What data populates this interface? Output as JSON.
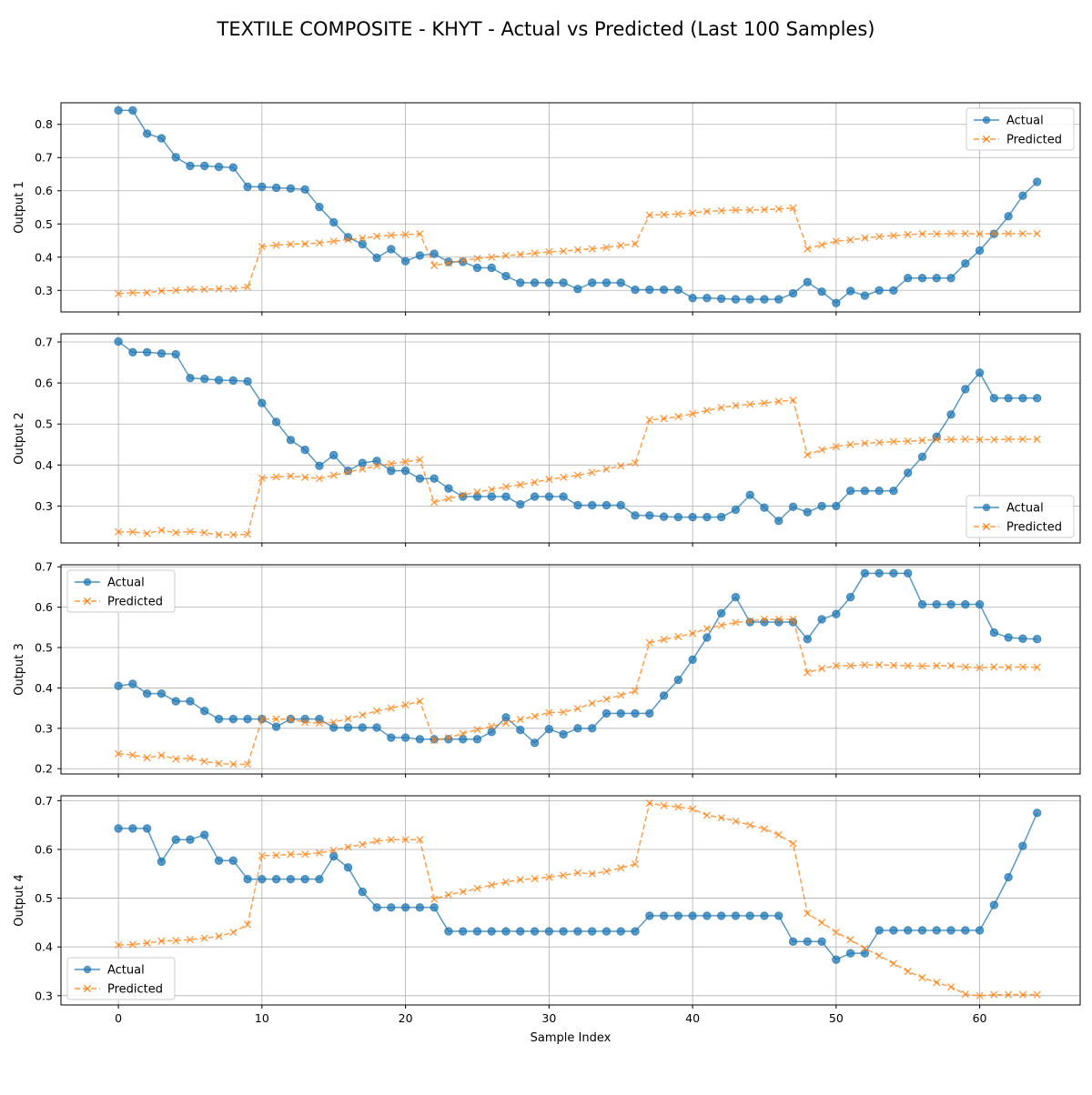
{
  "figure": {
    "title": "TEXTILE COMPOSITE - KHYT - Actual vs Predicted (Last 100 Samples)",
    "xlabel": "Sample Index"
  },
  "colors": {
    "actual": "#1f77b4",
    "predicted": "#ff7f0e",
    "grid": "#b0b0b0"
  },
  "chart_data": [
    {
      "type": "line",
      "ylabel": "Output 1",
      "legend": "upper-right",
      "xlim": [
        -4,
        67
      ],
      "ylim": [
        0.235,
        0.865
      ],
      "xticks": [
        0,
        10,
        20,
        30,
        40,
        50,
        60
      ],
      "yticks": [
        0.3,
        0.4,
        0.5,
        0.6,
        0.7,
        0.8
      ],
      "x": [
        0,
        1,
        2,
        3,
        4,
        5,
        6,
        7,
        8,
        9,
        10,
        11,
        12,
        13,
        14,
        15,
        16,
        17,
        18,
        19,
        20,
        21,
        22,
        23,
        24,
        25,
        26,
        27,
        28,
        29,
        30,
        31,
        32,
        33,
        34,
        35,
        36,
        37,
        38,
        39,
        40,
        41,
        42,
        43,
        44,
        45,
        46,
        47,
        48,
        49,
        50,
        51,
        52,
        53,
        54,
        55,
        56,
        57,
        58,
        59,
        60,
        61,
        62,
        63,
        64
      ],
      "series": [
        {
          "name": "Actual",
          "style": "solid-circle",
          "values": [
            0.842,
            0.842,
            0.772,
            0.758,
            0.701,
            0.675,
            0.675,
            0.672,
            0.67,
            0.612,
            0.612,
            0.609,
            0.607,
            0.604,
            0.551,
            0.505,
            0.46,
            0.439,
            0.398,
            0.424,
            0.388,
            0.405,
            0.41,
            0.386,
            0.386,
            0.368,
            0.368,
            0.343,
            0.323,
            0.323,
            0.323,
            0.323,
            0.304,
            0.323,
            0.323,
            0.323,
            0.302,
            0.302,
            0.302,
            0.302,
            0.277,
            0.277,
            0.275,
            0.273,
            0.273,
            0.273,
            0.273,
            0.291,
            0.325,
            0.296,
            0.262,
            0.298,
            0.284,
            0.3,
            0.3,
            0.337,
            0.337,
            0.337,
            0.337,
            0.381,
            0.42,
            0.47,
            0.523,
            0.585,
            0.627
          ]
        },
        {
          "name": "Predicted",
          "style": "dashed-x",
          "values": [
            0.29,
            0.293,
            0.293,
            0.298,
            0.3,
            0.303,
            0.303,
            0.305,
            0.305,
            0.31,
            0.432,
            0.436,
            0.439,
            0.44,
            0.443,
            0.448,
            0.453,
            0.457,
            0.463,
            0.466,
            0.468,
            0.47,
            0.375,
            0.382,
            0.39,
            0.396,
            0.4,
            0.405,
            0.408,
            0.412,
            0.416,
            0.418,
            0.422,
            0.425,
            0.429,
            0.435,
            0.44,
            0.527,
            0.528,
            0.53,
            0.533,
            0.538,
            0.54,
            0.542,
            0.542,
            0.543,
            0.545,
            0.548,
            0.425,
            0.437,
            0.448,
            0.452,
            0.458,
            0.462,
            0.465,
            0.468,
            0.47,
            0.47,
            0.471,
            0.471,
            0.47,
            0.471,
            0.471,
            0.471,
            0.471
          ]
        }
      ]
    },
    {
      "type": "line",
      "ylabel": "Output 2",
      "legend": "lower-right",
      "xlim": [
        -4,
        67
      ],
      "ylim": [
        0.21,
        0.72
      ],
      "xticks": [
        0,
        10,
        20,
        30,
        40,
        50,
        60
      ],
      "yticks": [
        0.3,
        0.4,
        0.5,
        0.6,
        0.7
      ],
      "x": [
        0,
        1,
        2,
        3,
        4,
        5,
        6,
        7,
        8,
        9,
        10,
        11,
        12,
        13,
        14,
        15,
        16,
        17,
        18,
        19,
        20,
        21,
        22,
        23,
        24,
        25,
        26,
        27,
        28,
        29,
        30,
        31,
        32,
        33,
        34,
        35,
        36,
        37,
        38,
        39,
        40,
        41,
        42,
        43,
        44,
        45,
        46,
        47,
        48,
        49,
        50,
        51,
        52,
        53,
        54,
        55,
        56,
        57,
        58,
        59,
        60,
        61,
        62,
        63,
        64
      ],
      "series": [
        {
          "name": "Actual",
          "style": "solid-circle",
          "values": [
            0.701,
            0.675,
            0.675,
            0.672,
            0.67,
            0.612,
            0.61,
            0.607,
            0.606,
            0.604,
            0.551,
            0.505,
            0.461,
            0.437,
            0.398,
            0.424,
            0.386,
            0.405,
            0.41,
            0.386,
            0.386,
            0.367,
            0.367,
            0.343,
            0.323,
            0.323,
            0.323,
            0.323,
            0.304,
            0.323,
            0.323,
            0.323,
            0.302,
            0.302,
            0.302,
            0.302,
            0.277,
            0.277,
            0.274,
            0.273,
            0.273,
            0.273,
            0.273,
            0.291,
            0.327,
            0.296,
            0.264,
            0.298,
            0.285,
            0.3,
            0.3,
            0.337,
            0.337,
            0.337,
            0.337,
            0.381,
            0.42,
            0.469,
            0.523,
            0.585,
            0.625,
            0.563,
            0.563,
            0.563,
            0.563
          ]
        },
        {
          "name": "Predicted",
          "style": "dashed-x",
          "values": [
            0.237,
            0.237,
            0.233,
            0.241,
            0.235,
            0.238,
            0.235,
            0.23,
            0.23,
            0.231,
            0.368,
            0.371,
            0.373,
            0.37,
            0.367,
            0.375,
            0.383,
            0.39,
            0.398,
            0.403,
            0.408,
            0.413,
            0.309,
            0.318,
            0.327,
            0.334,
            0.34,
            0.347,
            0.352,
            0.358,
            0.365,
            0.37,
            0.375,
            0.382,
            0.39,
            0.398,
            0.405,
            0.51,
            0.513,
            0.518,
            0.525,
            0.533,
            0.54,
            0.545,
            0.548,
            0.551,
            0.555,
            0.558,
            0.425,
            0.437,
            0.445,
            0.45,
            0.453,
            0.455,
            0.457,
            0.458,
            0.46,
            0.462,
            0.462,
            0.463,
            0.462,
            0.462,
            0.463,
            0.463,
            0.463
          ]
        }
      ]
    },
    {
      "type": "line",
      "ylabel": "Output 3",
      "legend": "upper-left",
      "xlim": [
        -4,
        67
      ],
      "ylim": [
        0.187,
        0.705
      ],
      "xticks": [
        0,
        10,
        20,
        30,
        40,
        50,
        60
      ],
      "yticks": [
        0.2,
        0.3,
        0.4,
        0.5,
        0.6,
        0.7
      ],
      "x": [
        0,
        1,
        2,
        3,
        4,
        5,
        6,
        7,
        8,
        9,
        10,
        11,
        12,
        13,
        14,
        15,
        16,
        17,
        18,
        19,
        20,
        21,
        22,
        23,
        24,
        25,
        26,
        27,
        28,
        29,
        30,
        31,
        32,
        33,
        34,
        35,
        36,
        37,
        38,
        39,
        40,
        41,
        42,
        43,
        44,
        45,
        46,
        47,
        48,
        49,
        50,
        51,
        52,
        53,
        54,
        55,
        56,
        57,
        58,
        59,
        60,
        61,
        62,
        63,
        64
      ],
      "series": [
        {
          "name": "Actual",
          "style": "solid-circle",
          "values": [
            0.405,
            0.41,
            0.386,
            0.386,
            0.367,
            0.367,
            0.343,
            0.323,
            0.323,
            0.323,
            0.323,
            0.304,
            0.323,
            0.323,
            0.323,
            0.302,
            0.302,
            0.302,
            0.302,
            0.277,
            0.277,
            0.273,
            0.273,
            0.273,
            0.273,
            0.273,
            0.291,
            0.327,
            0.296,
            0.264,
            0.298,
            0.285,
            0.3,
            0.3,
            0.337,
            0.337,
            0.337,
            0.337,
            0.381,
            0.42,
            0.47,
            0.525,
            0.585,
            0.625,
            0.563,
            0.563,
            0.563,
            0.563,
            0.521,
            0.57,
            0.583,
            0.625,
            0.684,
            0.684,
            0.684,
            0.684,
            0.607,
            0.607,
            0.607,
            0.607,
            0.607,
            0.537,
            0.525,
            0.522,
            0.521
          ]
        },
        {
          "name": "Predicted",
          "style": "dashed-x",
          "values": [
            0.237,
            0.234,
            0.227,
            0.233,
            0.224,
            0.226,
            0.218,
            0.213,
            0.211,
            0.211,
            0.323,
            0.323,
            0.322,
            0.315,
            0.313,
            0.315,
            0.324,
            0.333,
            0.343,
            0.35,
            0.358,
            0.367,
            0.27,
            0.277,
            0.287,
            0.297,
            0.305,
            0.313,
            0.322,
            0.33,
            0.339,
            0.34,
            0.349,
            0.362,
            0.372,
            0.382,
            0.392,
            0.512,
            0.52,
            0.527,
            0.535,
            0.547,
            0.555,
            0.562,
            0.566,
            0.57,
            0.57,
            0.57,
            0.438,
            0.448,
            0.455,
            0.455,
            0.457,
            0.457,
            0.456,
            0.455,
            0.454,
            0.455,
            0.455,
            0.452,
            0.45,
            0.452,
            0.451,
            0.452,
            0.451
          ]
        }
      ]
    },
    {
      "type": "line",
      "ylabel": "Output 4",
      "legend": "lower-left",
      "xlim": [
        -4,
        67
      ],
      "ylim": [
        0.281,
        0.71
      ],
      "xticks": [
        0,
        10,
        20,
        30,
        40,
        50,
        60
      ],
      "yticks": [
        0.3,
        0.4,
        0.5,
        0.6,
        0.7
      ],
      "x": [
        0,
        1,
        2,
        3,
        4,
        5,
        6,
        7,
        8,
        9,
        10,
        11,
        12,
        13,
        14,
        15,
        16,
        17,
        18,
        19,
        20,
        21,
        22,
        23,
        24,
        25,
        26,
        27,
        28,
        29,
        30,
        31,
        32,
        33,
        34,
        35,
        36,
        37,
        38,
        39,
        40,
        41,
        42,
        43,
        44,
        45,
        46,
        47,
        48,
        49,
        50,
        51,
        52,
        53,
        54,
        55,
        56,
        57,
        58,
        59,
        60,
        61,
        62,
        63,
        64
      ],
      "series": [
        {
          "name": "Actual",
          "style": "solid-circle",
          "values": [
            0.643,
            0.643,
            0.643,
            0.575,
            0.62,
            0.62,
            0.63,
            0.577,
            0.577,
            0.539,
            0.539,
            0.539,
            0.539,
            0.539,
            0.539,
            0.586,
            0.563,
            0.513,
            0.481,
            0.481,
            0.481,
            0.481,
            0.481,
            0.432,
            0.432,
            0.432,
            0.432,
            0.432,
            0.432,
            0.432,
            0.432,
            0.432,
            0.432,
            0.432,
            0.432,
            0.432,
            0.432,
            0.464,
            0.464,
            0.464,
            0.464,
            0.464,
            0.464,
            0.464,
            0.464,
            0.464,
            0.464,
            0.411,
            0.411,
            0.411,
            0.374,
            0.387,
            0.387,
            0.434,
            0.434,
            0.434,
            0.434,
            0.434,
            0.434,
            0.434,
            0.434,
            0.486,
            0.543,
            0.607,
            0.675
          ]
        },
        {
          "name": "Predicted",
          "style": "dashed-x",
          "values": [
            0.404,
            0.405,
            0.408,
            0.412,
            0.413,
            0.415,
            0.418,
            0.422,
            0.43,
            0.446,
            0.587,
            0.588,
            0.59,
            0.59,
            0.593,
            0.598,
            0.605,
            0.61,
            0.617,
            0.62,
            0.62,
            0.62,
            0.498,
            0.507,
            0.513,
            0.52,
            0.527,
            0.533,
            0.538,
            0.54,
            0.543,
            0.547,
            0.552,
            0.55,
            0.555,
            0.562,
            0.57,
            0.695,
            0.69,
            0.687,
            0.683,
            0.67,
            0.665,
            0.658,
            0.65,
            0.642,
            0.63,
            0.612,
            0.469,
            0.45,
            0.43,
            0.415,
            0.397,
            0.382,
            0.366,
            0.35,
            0.337,
            0.327,
            0.318,
            0.303,
            0.3,
            0.302,
            0.302,
            0.302,
            0.302
          ]
        }
      ]
    }
  ]
}
